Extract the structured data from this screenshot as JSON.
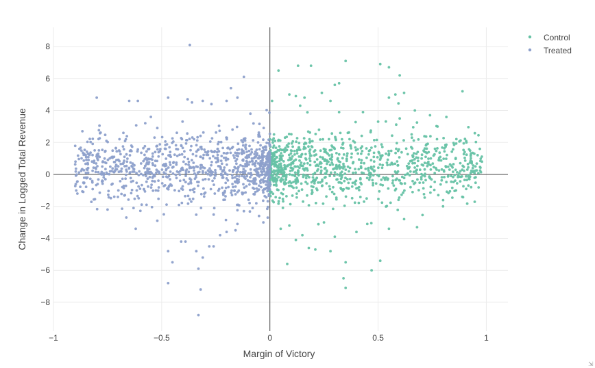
{
  "chart_data": {
    "type": "scatter",
    "xlabel": "Margin of Victory",
    "ylabel": "Change in Logged Total Revenue",
    "xlim": [
      -1,
      1.1
    ],
    "ylim": [
      -9.8,
      9.2
    ],
    "xticks": [
      -1,
      -0.5,
      0,
      0.5,
      1
    ],
    "xtick_labels": [
      "−1",
      "−0.5",
      "0",
      "0.5",
      "1"
    ],
    "yticks": [
      -8,
      -6,
      -4,
      -2,
      0,
      2,
      4,
      6,
      8
    ],
    "ytick_labels": [
      "−8",
      "−6",
      "−4",
      "−2",
      "0",
      "2",
      "4",
      "6",
      "8"
    ],
    "grid": true,
    "zero_lines": true,
    "legend_position": "top-right",
    "series": [
      {
        "name": "Control",
        "color": "#66c2a5",
        "x_range": [
          0,
          0.98
        ],
        "points": [
          [
            0.04,
            6.5
          ],
          [
            0.13,
            6.8
          ],
          [
            0.19,
            6.8
          ],
          [
            0.35,
            7.1
          ],
          [
            0.51,
            6.9
          ],
          [
            0.55,
            6.7
          ],
          [
            0.6,
            6.2
          ],
          [
            0.32,
            5.7
          ],
          [
            0.3,
            5.6
          ],
          [
            0.89,
            5.2
          ],
          [
            0.62,
            5.1
          ],
          [
            0.58,
            5.0
          ],
          [
            0.24,
            5.1
          ],
          [
            0.09,
            5.0
          ],
          [
            0.12,
            4.9
          ],
          [
            0.16,
            4.8
          ],
          [
            0.28,
            4.6
          ],
          [
            0.01,
            4.6
          ],
          [
            0.43,
            3.9
          ],
          [
            0.6,
            3.5
          ],
          [
            0.5,
            3.3
          ],
          [
            0.32,
            3.9
          ],
          [
            0.67,
            4.0
          ],
          [
            0.14,
            4.3
          ],
          [
            0.74,
            3.7
          ],
          [
            0.55,
            4.8
          ],
          [
            0.05,
            -3.4
          ],
          [
            0.09,
            -3.2
          ],
          [
            0.12,
            -4.1
          ],
          [
            0.18,
            -4.6
          ],
          [
            0.21,
            -4.7
          ],
          [
            0.28,
            -4.8
          ],
          [
            0.35,
            -5.5
          ],
          [
            0.47,
            -6.0
          ],
          [
            0.51,
            -5.4
          ],
          [
            0.34,
            -6.5
          ],
          [
            0.35,
            -7.1
          ],
          [
            0.08,
            -5.6
          ],
          [
            0.15,
            -3.8
          ],
          [
            0.3,
            -3.9
          ],
          [
            0.4,
            -3.6
          ],
          [
            0.55,
            -3.4
          ],
          [
            0.68,
            -3.3
          ],
          [
            0.62,
            -2.8
          ],
          [
            0.8,
            -2.0
          ],
          [
            0.86,
            -1.0
          ],
          [
            0.93,
            -0.8
          ],
          [
            0.96,
            1.2
          ],
          [
            0.97,
            1.6
          ],
          [
            0.98,
            0.8
          ],
          [
            0.95,
            0.5
          ],
          [
            0.88,
            0.7
          ],
          [
            0.9,
            1.4
          ],
          [
            0.83,
            0.3
          ],
          [
            0.78,
            0.9
          ],
          [
            0.72,
            1.1
          ],
          [
            0.7,
            -0.3
          ],
          [
            0.65,
            -0.8
          ],
          [
            0.25,
            -3.0
          ],
          [
            0.45,
            -3.1
          ]
        ]
      },
      {
        "name": "Treated",
        "color": "#8da0cb",
        "x_range": [
          -0.9,
          0
        ],
        "points": [
          [
            -0.37,
            8.1
          ],
          [
            -0.12,
            6.1
          ],
          [
            -0.8,
            4.8
          ],
          [
            -0.65,
            4.6
          ],
          [
            -0.61,
            4.6
          ],
          [
            -0.47,
            4.8
          ],
          [
            -0.38,
            4.7
          ],
          [
            -0.36,
            4.5
          ],
          [
            -0.31,
            4.6
          ],
          [
            -0.27,
            4.4
          ],
          [
            -0.2,
            4.6
          ],
          [
            -0.18,
            5.4
          ],
          [
            -0.15,
            4.8
          ],
          [
            -0.09,
            3.8
          ],
          [
            -0.55,
            3.6
          ],
          [
            -0.52,
            2.9
          ],
          [
            -0.43,
            2.6
          ],
          [
            -0.88,
            1.6
          ],
          [
            -0.84,
            1.3
          ],
          [
            -0.79,
            1.5
          ],
          [
            -0.74,
            1.0
          ],
          [
            -0.71,
            0.6
          ],
          [
            -0.66,
            0.8
          ],
          [
            -0.85,
            -0.2
          ],
          [
            -0.82,
            -0.5
          ],
          [
            -0.76,
            -0.3
          ],
          [
            -0.75,
            -2.2
          ],
          [
            -0.62,
            -3.4
          ],
          [
            -0.67,
            -1.3
          ],
          [
            -0.6,
            -0.9
          ],
          [
            -0.47,
            -4.8
          ],
          [
            -0.45,
            -5.5
          ],
          [
            -0.41,
            -4.2
          ],
          [
            -0.39,
            -4.2
          ],
          [
            -0.47,
            -6.8
          ],
          [
            -0.33,
            -5.9
          ],
          [
            -0.32,
            -7.2
          ],
          [
            -0.33,
            -8.8
          ],
          [
            -0.31,
            -5.2
          ],
          [
            -0.34,
            -4.8
          ],
          [
            -0.28,
            -4.5
          ],
          [
            -0.26,
            -4.5
          ],
          [
            -0.23,
            -3.8
          ],
          [
            -0.2,
            -3.6
          ],
          [
            -0.15,
            -3.1
          ],
          [
            -0.05,
            -2.6
          ],
          [
            -0.03,
            -3.0
          ],
          [
            -0.01,
            -2.7
          ],
          [
            -0.08,
            -2.1
          ],
          [
            -0.12,
            -2.3
          ],
          [
            -0.52,
            -2.9
          ],
          [
            -0.49,
            -2.5
          ],
          [
            -0.57,
            -1.9
          ],
          [
            -0.63,
            -2.1
          ],
          [
            -0.7,
            -1.0
          ],
          [
            -0.58,
            0.4
          ],
          [
            -0.53,
            1.4
          ],
          [
            -0.64,
            1.8
          ],
          [
            -0.69,
            0.2
          ],
          [
            -0.72,
            1.1
          ]
        ]
      }
    ]
  }
}
